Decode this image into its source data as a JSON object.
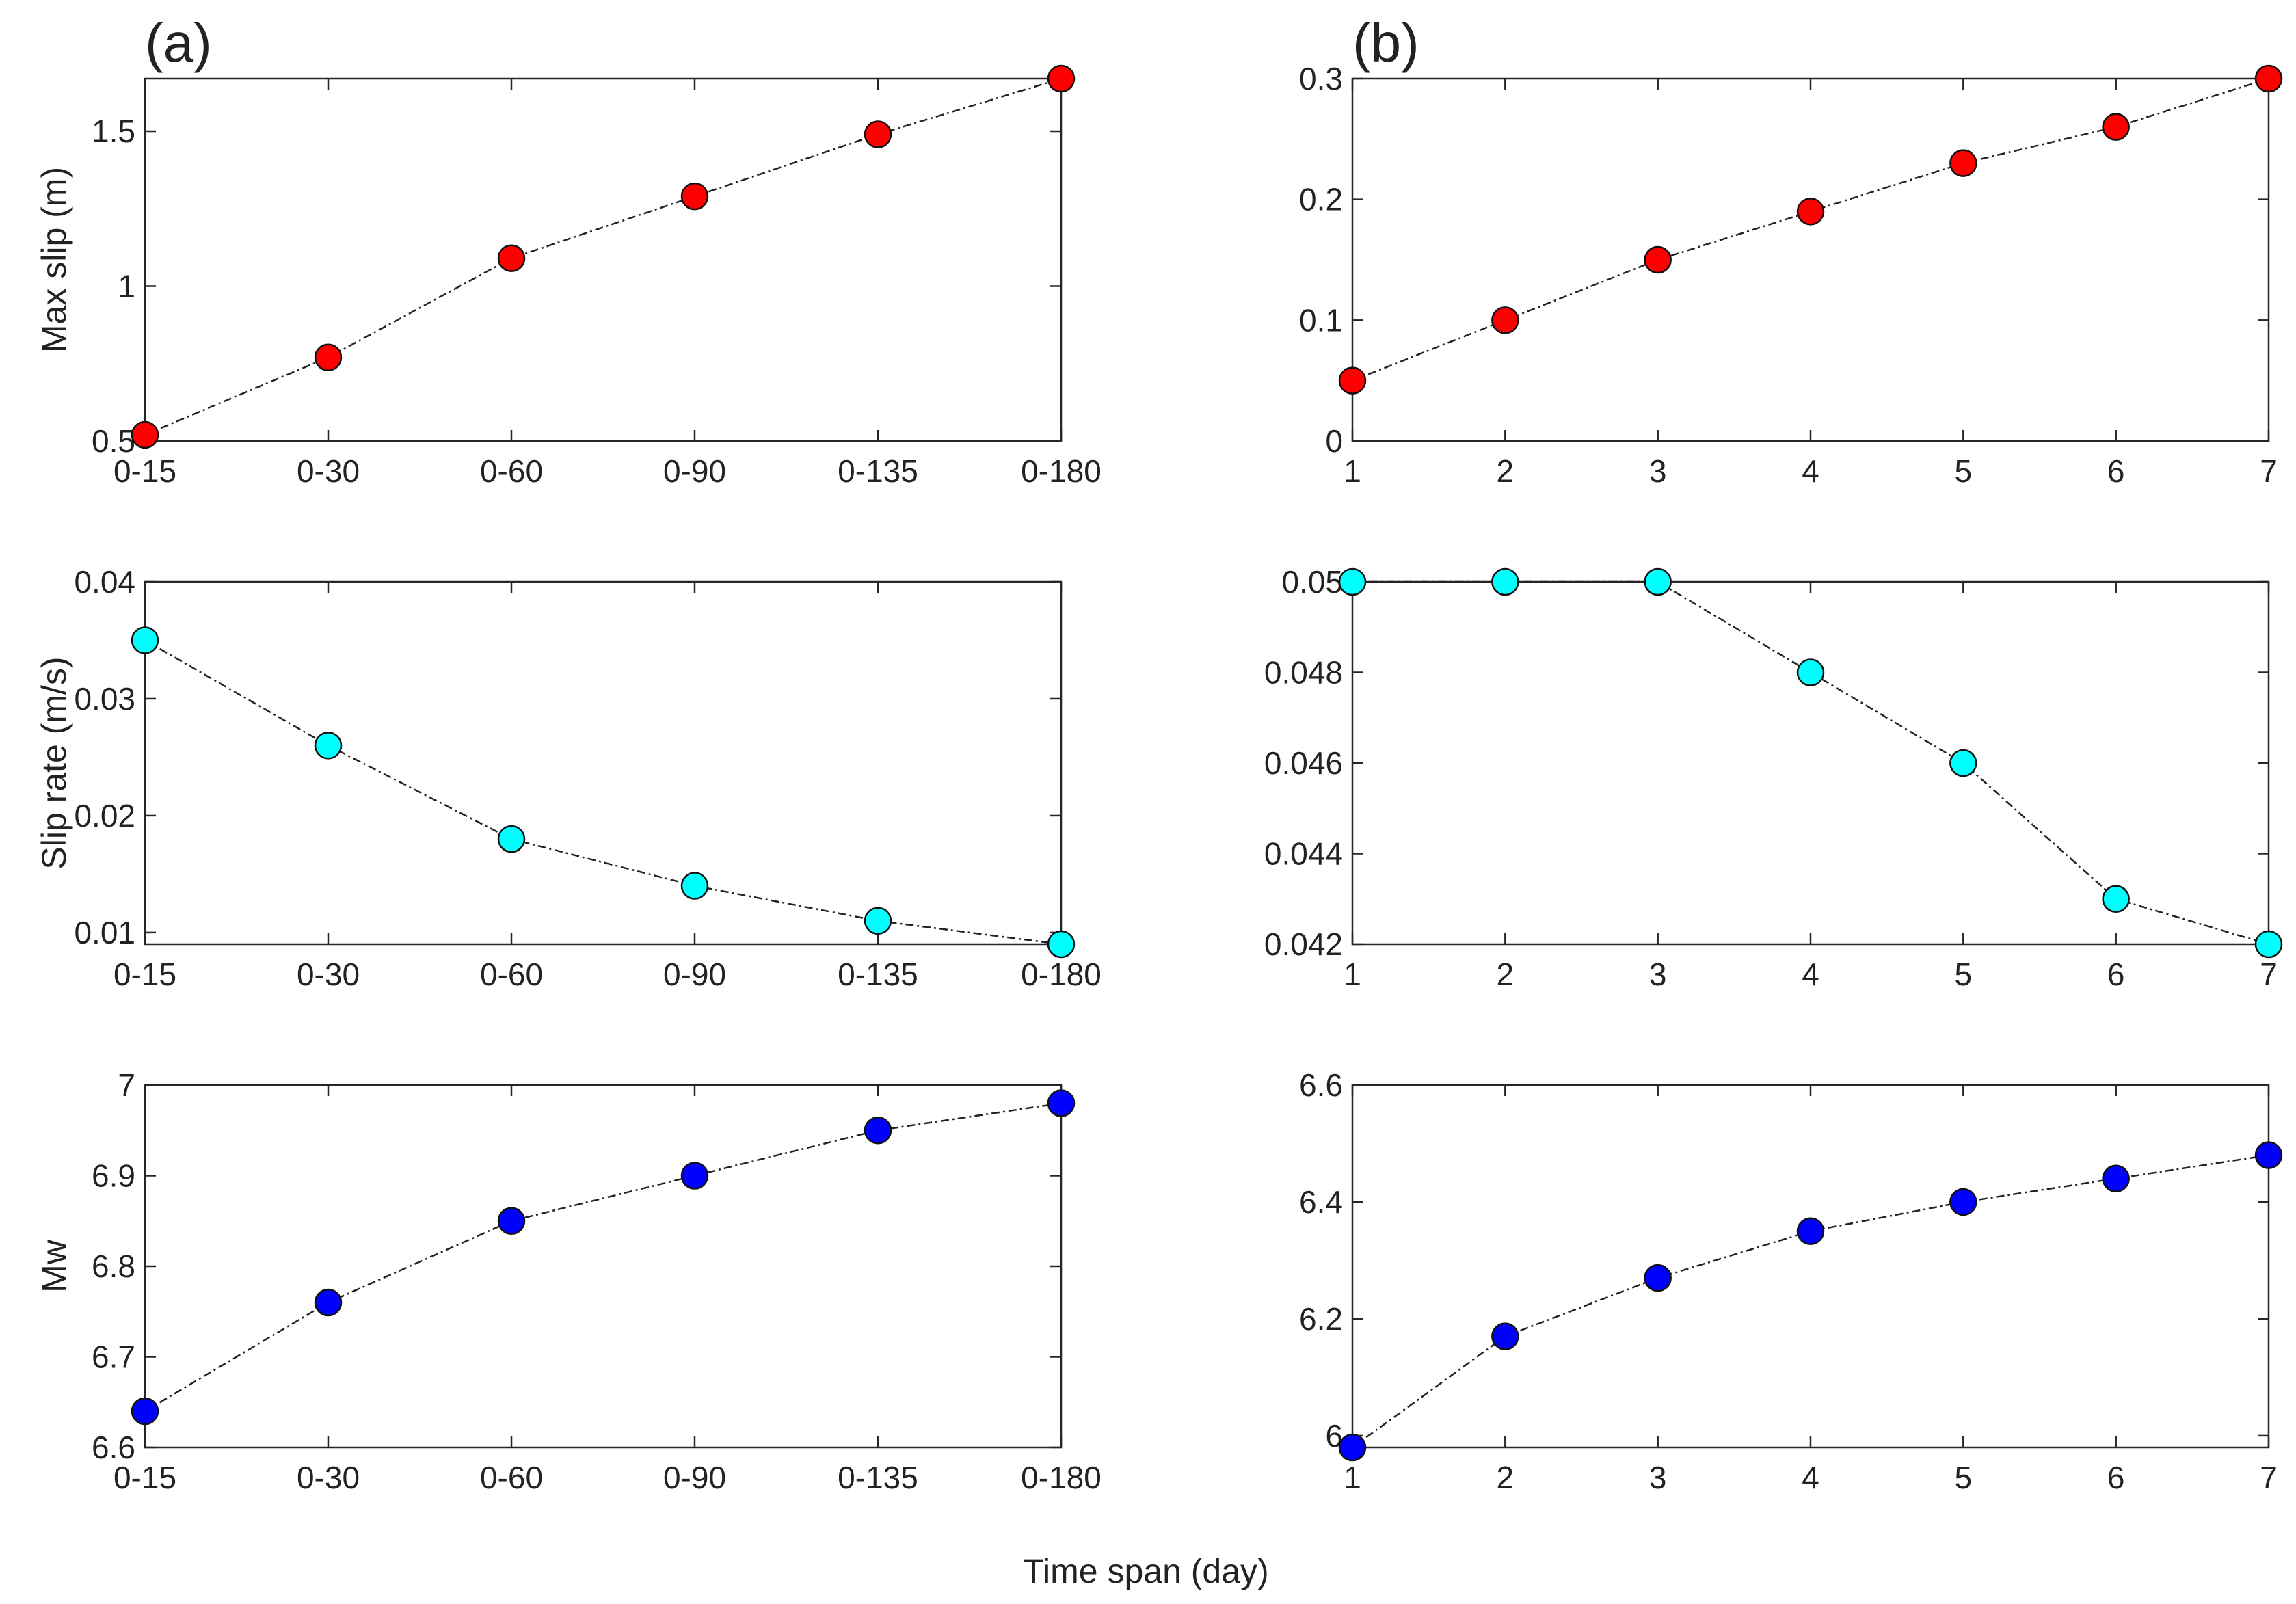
{
  "figure": {
    "panel_labels": [
      "(a)",
      "(b)"
    ],
    "shared_xlabel": "Time span (day)"
  },
  "chart_data": [
    {
      "type": "line",
      "panel": "(a)",
      "title": "",
      "xlabel": "",
      "ylabel": "Max slip (m)",
      "categories": [
        "0-15",
        "0-30",
        "0-60",
        "0-90",
        "0-135",
        "0-180"
      ],
      "values": [
        0.52,
        0.77,
        1.09,
        1.29,
        1.49,
        1.67
      ],
      "ylim": [
        0.5,
        1.67
      ],
      "yticks": [
        0.5,
        1,
        1.5
      ],
      "ytick_labels": [
        "0.5",
        "1",
        "1.5"
      ],
      "marker_color": "#ff0000",
      "grid": false
    },
    {
      "type": "line",
      "panel": "(b)",
      "title": "",
      "xlabel": "",
      "ylabel": "",
      "x": [
        1,
        2,
        3,
        4,
        5,
        6,
        7
      ],
      "values": [
        0.05,
        0.1,
        0.15,
        0.19,
        0.23,
        0.26,
        0.3
      ],
      "xlim": [
        1,
        7
      ],
      "ylim": [
        0,
        0.3
      ],
      "yticks": [
        0,
        0.1,
        0.2,
        0.3
      ],
      "ytick_labels": [
        "0",
        "0.1",
        "0.2",
        "0.3"
      ],
      "xtick_labels": [
        "1",
        "2",
        "3",
        "4",
        "5",
        "6",
        "7"
      ],
      "marker_color": "#ff0000",
      "grid": false
    },
    {
      "type": "line",
      "panel": "(a)",
      "title": "",
      "xlabel": "",
      "ylabel": "Slip rate (m/s)",
      "categories": [
        "0-15",
        "0-30",
        "0-60",
        "0-90",
        "0-135",
        "0-180"
      ],
      "values": [
        0.035,
        0.026,
        0.018,
        0.014,
        0.011,
        0.009
      ],
      "ylim": [
        0.009,
        0.04
      ],
      "yticks": [
        0.01,
        0.02,
        0.03,
        0.04
      ],
      "ytick_labels": [
        "0.01",
        "0.02",
        "0.03",
        "0.04"
      ],
      "marker_color": "#00ffff",
      "grid": false
    },
    {
      "type": "line",
      "panel": "(b)",
      "title": "",
      "xlabel": "",
      "ylabel": "",
      "x": [
        1,
        2,
        3,
        4,
        5,
        6,
        7
      ],
      "values": [
        0.05,
        0.05,
        0.05,
        0.048,
        0.046,
        0.043,
        0.042
      ],
      "xlim": [
        1,
        7
      ],
      "ylim": [
        0.042,
        0.05
      ],
      "yticks": [
        0.042,
        0.044,
        0.046,
        0.048,
        0.05
      ],
      "ytick_labels": [
        "0.042",
        "0.044",
        "0.046",
        "0.048",
        "0.05"
      ],
      "xtick_labels": [
        "1",
        "2",
        "3",
        "4",
        "5",
        "6",
        "7"
      ],
      "marker_color": "#00ffff",
      "grid": false
    },
    {
      "type": "line",
      "panel": "(a)",
      "title": "",
      "xlabel": "",
      "ylabel": "Mw",
      "categories": [
        "0-15",
        "0-30",
        "0-60",
        "0-90",
        "0-135",
        "0-180"
      ],
      "values": [
        6.64,
        6.76,
        6.85,
        6.9,
        6.95,
        6.98
      ],
      "ylim": [
        6.6,
        7.0
      ],
      "yticks": [
        6.6,
        6.7,
        6.8,
        6.9,
        7.0
      ],
      "ytick_labels": [
        "6.6",
        "6.7",
        "6.8",
        "6.9",
        "7"
      ],
      "marker_color": "#0000ff",
      "grid": false
    },
    {
      "type": "line",
      "panel": "(b)",
      "title": "",
      "xlabel": "",
      "ylabel": "",
      "x": [
        1,
        2,
        3,
        4,
        5,
        6,
        7
      ],
      "values": [
        5.98,
        6.17,
        6.27,
        6.35,
        6.4,
        6.44,
        6.48
      ],
      "xlim": [
        1,
        7
      ],
      "ylim": [
        5.98,
        6.6
      ],
      "yticks": [
        6.0,
        6.2,
        6.4,
        6.6
      ],
      "ytick_labels": [
        "6",
        "6.2",
        "6.4",
        "6.6"
      ],
      "xtick_labels": [
        "1",
        "2",
        "3",
        "4",
        "5",
        "6",
        "7"
      ],
      "marker_color": "#0000ff",
      "grid": false
    }
  ]
}
